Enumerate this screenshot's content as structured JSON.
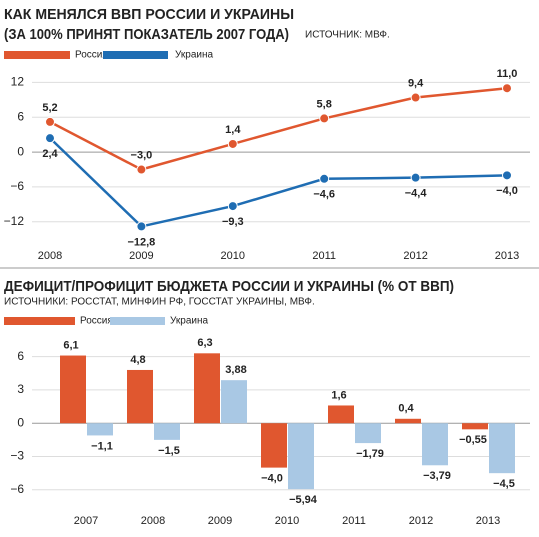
{
  "chart_data": [
    {
      "type": "line",
      "title": "КАК МЕНЯЛСЯ ВВП РОССИИ И УКРАИНЫ",
      "subtitle": "(ЗА 100% ПРИНЯТ ПОКАЗАТЕЛЬ 2007 ГОДА)",
      "source": "ИСТОЧНИК: МВФ.",
      "categories": [
        "2008",
        "2009",
        "2010",
        "2011",
        "2012",
        "2013"
      ],
      "series": [
        {
          "name": "Россия",
          "color": "#e0572f",
          "values": [
            5.2,
            -3.0,
            1.4,
            5.8,
            9.4,
            11.0
          ],
          "value_labels": [
            "5,2",
            "−3,0",
            "1,4",
            "5,8",
            "9,4",
            "11,0"
          ]
        },
        {
          "name": "Украина",
          "color": "#1f6db3",
          "values": [
            2.4,
            -12.8,
            -9.3,
            -4.6,
            -4.4,
            -4.0
          ],
          "value_labels": [
            "2,4",
            "−12,8",
            "−9,3",
            "−4,6",
            "−4,4",
            "−4,0"
          ]
        }
      ],
      "ylim": [
        -16,
        15
      ],
      "yticks": [
        12,
        6,
        0,
        {
          "value": -6,
          "label": "−6"
        },
        {
          "value": -12,
          "label": "−12"
        }
      ],
      "grid": true
    },
    {
      "type": "bar",
      "title": "ДЕФИЦИТ/ПРОФИЦИТ БЮДЖЕТА РОССИИ И УКРАИНЫ (% ОТ ВВП)",
      "source": "ИСТОЧНИКИ: РОССТАТ, МИНФИН РФ, ГОССТАТ УКРАИНЫ, МВФ.",
      "categories": [
        "2007",
        "2008",
        "2009",
        "2010",
        "2011",
        "2012",
        "2013"
      ],
      "series": [
        {
          "name": "Россия",
          "color": "#e0572f",
          "values": [
            6.1,
            4.8,
            6.3,
            -4.0,
            1.6,
            0.4,
            -0.55
          ],
          "value_labels": [
            "6,1",
            "4,8",
            "6,3",
            "−4,0",
            "1,6",
            "0,4",
            "−0,55"
          ]
        },
        {
          "name": "Украина",
          "color": "#a9c8e4",
          "values": [
            -1.1,
            -1.5,
            3.88,
            -5.94,
            -1.79,
            -3.79,
            -4.5
          ],
          "value_labels": [
            "−1,1",
            "−1,5",
            "3,88",
            "−5,94",
            "−1,79",
            "−3,79",
            "−4,5"
          ]
        }
      ],
      "ylim": [
        -8,
        7.5
      ],
      "yticks": [
        6,
        3,
        0,
        {
          "value": -3,
          "label": "−3"
        },
        {
          "value": -6,
          "label": "−6"
        }
      ],
      "grid": true
    }
  ]
}
